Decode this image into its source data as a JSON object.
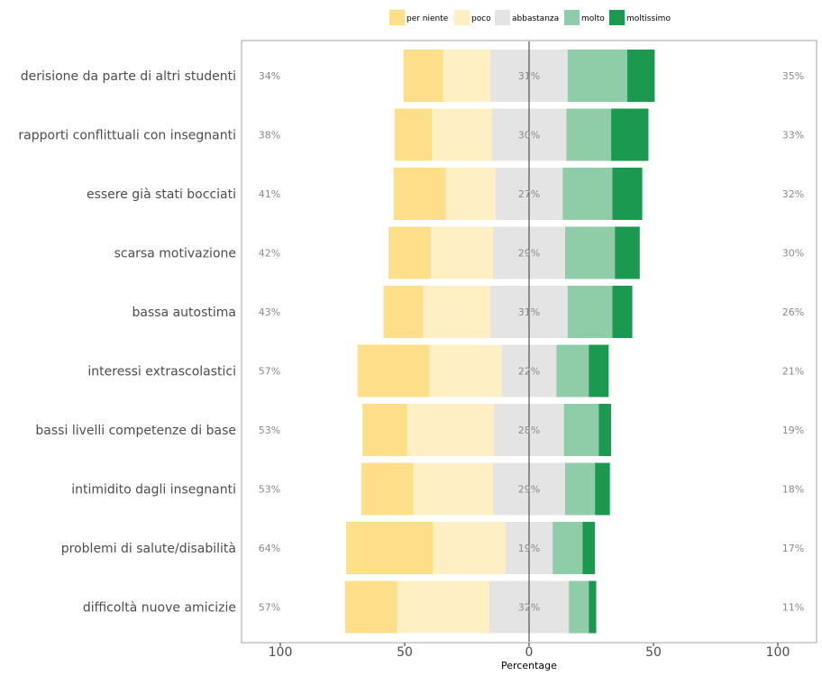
{
  "chart_data": {
    "type": "bar",
    "subtype": "diverging-stacked-likert",
    "xlabel": "Percentage",
    "xlim": [
      -100,
      100
    ],
    "x_ticks": [
      -100,
      -50,
      0,
      50,
      100
    ],
    "x_tick_labels": [
      "100",
      "50",
      "0",
      "50",
      "100"
    ],
    "legend_position": "top",
    "grid": false,
    "levels": [
      "per niente",
      "poco",
      "abbastanza",
      "molto",
      "moltissimo"
    ],
    "colors": [
      "#fedf89",
      "#feefc5",
      "#e4e4e4",
      "#8fcca8",
      "#1c9951"
    ],
    "categories": [
      "derisione da parte di altri studenti",
      "rapporti conflittuali con insegnanti",
      "essere già stati bocciati",
      "scarsa motivazione",
      "bassa autostima",
      "interessi extrascolastici",
      "bassi livelli competenze di base",
      "intimidito dagli insegnanti",
      "problemi di salute/disabilità",
      "difficoltà nuove amicizie"
    ],
    "series": [
      {
        "name": "per niente",
        "values": [
          16,
          15,
          21,
          17,
          16,
          29,
          18,
          21,
          35,
          21
        ]
      },
      {
        "name": "poco",
        "values": [
          19,
          24,
          20,
          25,
          27,
          29,
          35,
          32,
          29,
          37
        ]
      },
      {
        "name": "abbastanza",
        "values": [
          31,
          30,
          27,
          29,
          31,
          22,
          28,
          29,
          19,
          32
        ]
      },
      {
        "name": "molto",
        "values": [
          24,
          18,
          20,
          20,
          18,
          13,
          14,
          12,
          12,
          8
        ]
      },
      {
        "name": "moltissimo",
        "values": [
          11,
          15,
          12,
          10,
          8,
          8,
          5,
          6,
          5,
          3
        ]
      }
    ],
    "low_labels": [
      "34%",
      "38%",
      "41%",
      "42%",
      "43%",
      "57%",
      "53%",
      "53%",
      "64%",
      "57%"
    ],
    "neutral_labels": [
      "31%",
      "30%",
      "27%",
      "29%",
      "31%",
      "22%",
      "28%",
      "29%",
      "19%",
      "32%"
    ],
    "high_labels": [
      "35%",
      "33%",
      "32%",
      "30%",
      "26%",
      "21%",
      "19%",
      "18%",
      "17%",
      "11%"
    ]
  }
}
